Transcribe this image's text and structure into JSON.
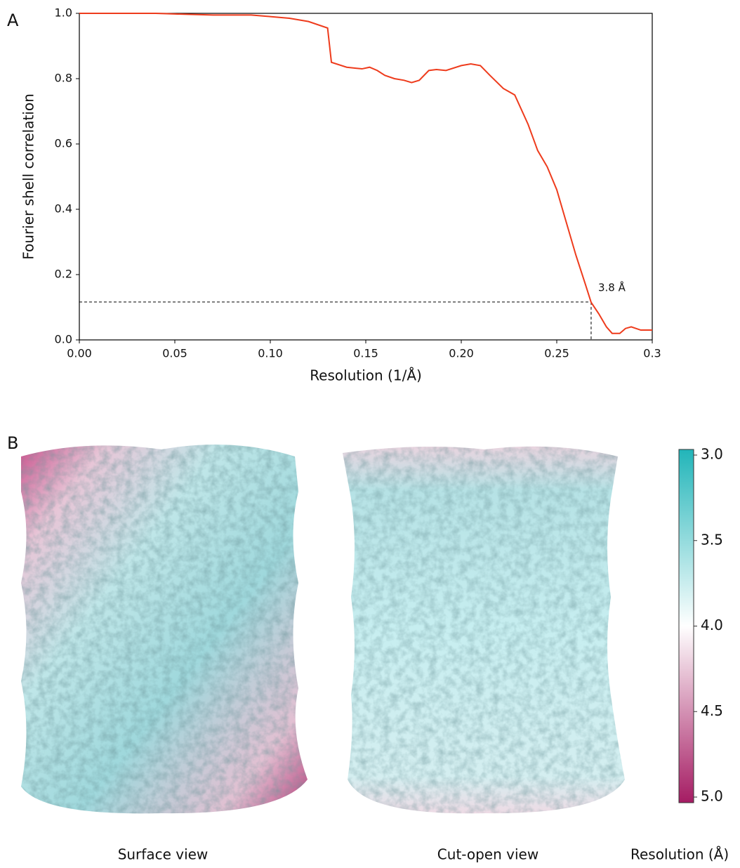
{
  "panel_labels": [
    "A",
    "B"
  ],
  "captions": [
    "Surface view",
    "Cut-open view"
  ],
  "chart_data": [
    {
      "type": "line",
      "x_label": "Resolution (1/Å)",
      "y_label": "Fourier shell correlation",
      "color": "#ee3b1c",
      "x": [
        0,
        0.04,
        0.05,
        0.07,
        0.09,
        0.1,
        0.11,
        0.12,
        0.13,
        0.132,
        0.14,
        0.148,
        0.152,
        0.156,
        0.16,
        0.165,
        0.17,
        0.174,
        0.178,
        0.183,
        0.187,
        0.192,
        0.2,
        0.205,
        0.21,
        0.215,
        0.222,
        0.228,
        0.235,
        0.24,
        0.245,
        0.25,
        0.255,
        0.26,
        0.265,
        0.268,
        0.272,
        0.276,
        0.279,
        0.283,
        0.286,
        0.289,
        0.294,
        0.3
      ],
      "values": [
        1.0,
        1.0,
        0.998,
        0.995,
        0.995,
        0.99,
        0.985,
        0.975,
        0.955,
        0.85,
        0.835,
        0.83,
        0.835,
        0.825,
        0.81,
        0.8,
        0.795,
        0.788,
        0.795,
        0.825,
        0.828,
        0.825,
        0.84,
        0.845,
        0.84,
        0.81,
        0.77,
        0.75,
        0.66,
        0.58,
        0.53,
        0.46,
        0.36,
        0.26,
        0.17,
        0.115,
        0.08,
        0.04,
        0.02,
        0.02,
        0.035,
        0.04,
        0.03,
        0.03
      ],
      "annotation": {
        "text": "3.8 Å",
        "x": 0.268,
        "y": 0.116
      },
      "xlim": [
        0,
        0.3
      ],
      "xticks": [
        {
          "value": 0,
          "label": "0.00"
        },
        0.05,
        {
          "value": 0.1,
          "label": "0.10"
        },
        0.15,
        {
          "value": 0.2,
          "label": "0.20"
        },
        0.25,
        0.3
      ],
      "ylim": [
        0,
        1
      ],
      "yticks": [
        {
          "value": 0,
          "label": "0.0"
        },
        0.2,
        0.4,
        0.6,
        0.8,
        {
          "value": 1,
          "label": "1.0"
        }
      ]
    },
    {
      "type": "colorbar",
      "title": "Resolution (Å)",
      "colors": [
        "#22b5b9",
        "#ffffff",
        "#a51c63"
      ],
      "ylim": [
        5,
        3
      ],
      "yticks": [
        {
          "value": 3,
          "label": "3.0"
        },
        3.5,
        {
          "value": 4,
          "label": "4.0"
        },
        4.5,
        {
          "value": 5,
          "label": "5.0"
        }
      ]
    }
  ]
}
